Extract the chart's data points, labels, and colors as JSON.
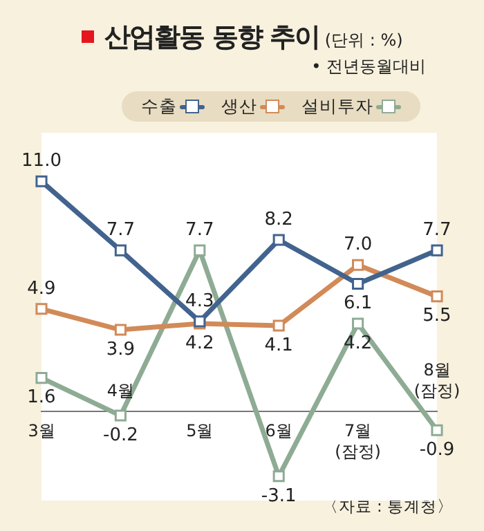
{
  "chart_data": {
    "type": "line",
    "title": "산업활동 동향 추이",
    "subtitle": "• 전년동월대비",
    "annotations": [
      "(단위 : %)",
      "〈자료 : 통계청〉"
    ],
    "categories": [
      "3월",
      "4월",
      "5월",
      "6월",
      "7월\n(잠정)",
      "8월\n(잠정)"
    ],
    "series": [
      {
        "name": "수출",
        "color": "#41638e",
        "values": [
          11.0,
          7.7,
          4.3,
          8.2,
          6.1,
          7.7
        ],
        "value_labels": [
          "11.0",
          "7.7",
          "4.3",
          "8.2",
          "6.1",
          "7.7"
        ]
      },
      {
        "name": "생산",
        "color": "#d18a58",
        "values": [
          4.9,
          3.9,
          4.2,
          4.1,
          7.0,
          5.5
        ],
        "value_labels": [
          "4.9",
          "3.9",
          "4.2",
          "4.1",
          "7.0",
          "5.5"
        ]
      },
      {
        "name": "설비투자",
        "color": "#8eab94",
        "values": [
          1.6,
          -0.2,
          7.7,
          -3.1,
          4.2,
          -0.9
        ],
        "value_labels": [
          "1.6",
          "-0.2",
          "7.7",
          "-3.1",
          "4.2",
          "-0.9"
        ]
      }
    ],
    "marker": "square",
    "legend": "top",
    "grid": false,
    "data_labels": true
  }
}
